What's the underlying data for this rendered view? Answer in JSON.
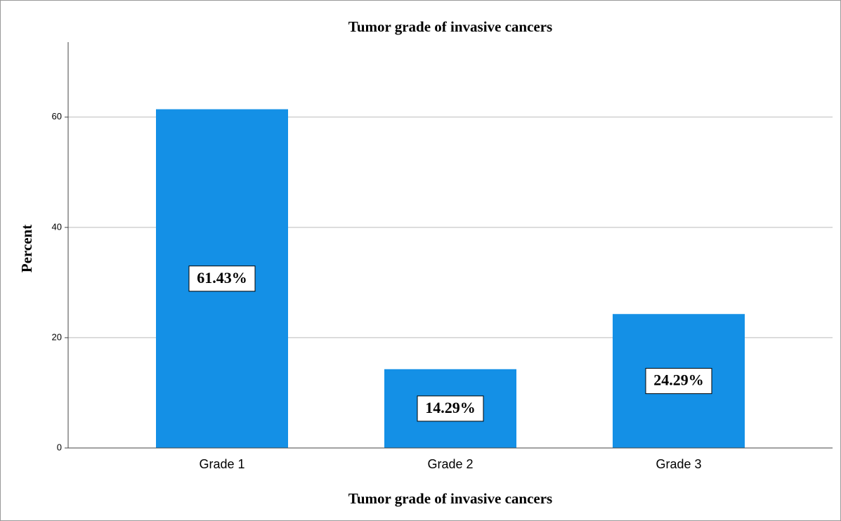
{
  "chart_data": {
    "type": "bar",
    "title": "Tumor grade of invasive cancers",
    "x_label": "Tumor grade of invasive cancers",
    "y_label": "Percent",
    "categories": [
      "Grade 1",
      "Grade 2",
      "Grade 3"
    ],
    "values": [
      61.43,
      14.29,
      24.29
    ],
    "value_labels": [
      "61.43%",
      "14.29%",
      "24.29%"
    ],
    "color": "#1490e6",
    "ylim": [
      0,
      73.6
    ],
    "yticks": [
      0,
      20,
      40,
      60
    ],
    "grid": true
  }
}
